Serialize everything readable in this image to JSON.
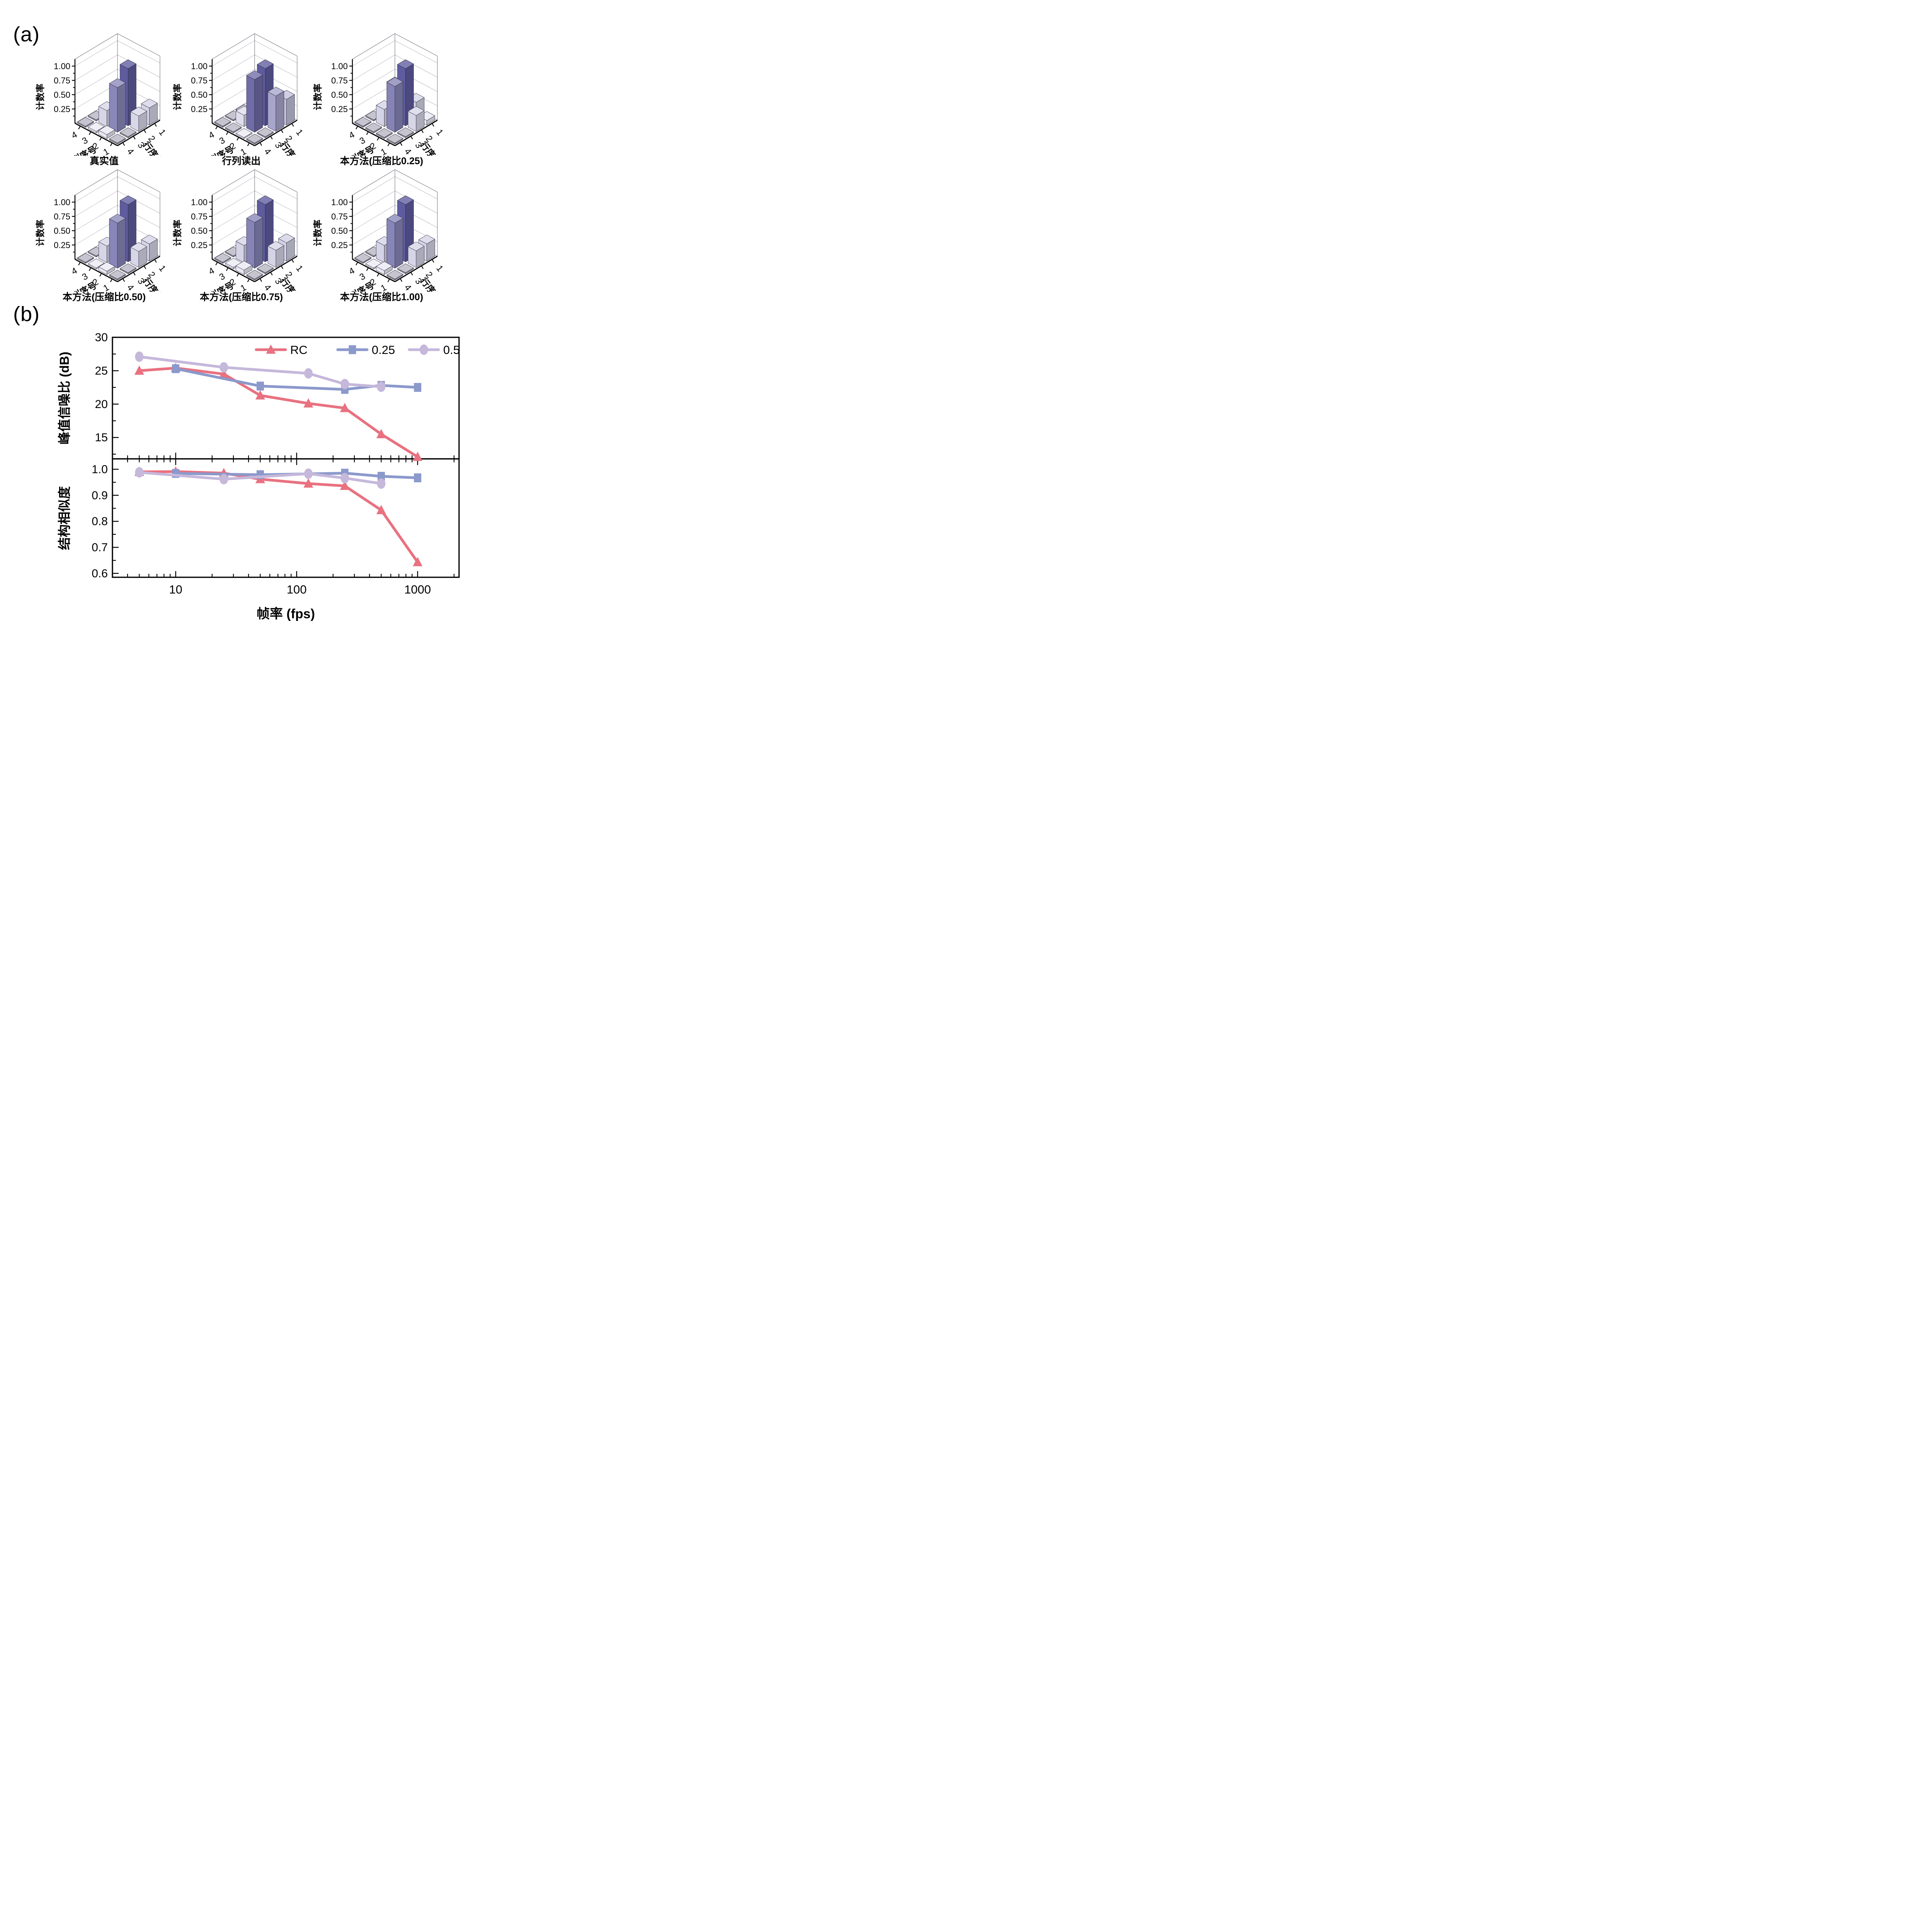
{
  "figure": {
    "panel_a_label": "(a)",
    "panel_b_label": "(b)"
  },
  "chart_data": {
    "panel_a": {
      "type": "bar3d",
      "z_axis": {
        "label": "计数率",
        "lim": [
          0,
          1
        ],
        "major_ticks": [
          0.25,
          0.5,
          0.75,
          1.0
        ],
        "tick_labels": [
          "0.25",
          "0.50",
          "0.75",
          "1.00"
        ],
        "minor_ticks": [
          0.125,
          0.375,
          0.625,
          0.875
        ]
      },
      "col_axis": {
        "label": "列序号",
        "ticks": [
          1,
          2,
          3,
          4
        ],
        "tick_labels": [
          "1",
          "2",
          "3",
          "4"
        ]
      },
      "row_axis": {
        "label": "行序号",
        "ticks": [
          1,
          2,
          3,
          4
        ],
        "tick_labels": [
          "1",
          "2",
          "3",
          "4"
        ]
      },
      "subplots": [
        {
          "title": "真实值",
          "values_rows_1to4_cols_1to4": [
            [
              0.3,
              0.01,
              0.01,
              0.01
            ],
            [
              0.27,
              1.0,
              0.55,
              0.01
            ],
            [
              0.01,
              0.78,
              0.28,
              0.01
            ],
            [
              0.01,
              0.07,
              0.03,
              0.01
            ]
          ]
        },
        {
          "title": "行列读出",
          "values_rows_1to4_cols_1to4": [
            [
              0.45,
              0.01,
              0.01,
              0.01
            ],
            [
              0.62,
              1.0,
              0.01,
              0.01
            ],
            [
              0.01,
              0.92,
              0.2,
              0.01
            ],
            [
              0.01,
              0.02,
              0.01,
              0.01
            ]
          ]
        },
        {
          "title": "本方法(压缩比0.25)",
          "values_rows_1to4_cols_1to4": [
            [
              0.08,
              0.3,
              0.01,
              0.01
            ],
            [
              0.28,
              1.0,
              0.6,
              0.01
            ],
            [
              0.01,
              0.8,
              0.3,
              0.01
            ],
            [
              0.01,
              0.01,
              0.01,
              0.01
            ]
          ]
        },
        {
          "title": "本方法(压缩比0.50)",
          "values_rows_1to4_cols_1to4": [
            [
              0.3,
              0.01,
              0.01,
              0.01
            ],
            [
              0.28,
              1.0,
              0.55,
              0.01
            ],
            [
              0.01,
              0.79,
              0.29,
              0.01
            ],
            [
              0.01,
              0.06,
              0.02,
              0.01
            ]
          ]
        },
        {
          "title": "本方法(压缩比0.75)",
          "values_rows_1to4_cols_1to4": [
            [
              0.32,
              0.01,
              0.01,
              0.01
            ],
            [
              0.3,
              1.0,
              0.55,
              0.01
            ],
            [
              0.01,
              0.8,
              0.3,
              0.01
            ],
            [
              0.01,
              0.08,
              0.03,
              0.01
            ]
          ]
        },
        {
          "title": "本方法(压缩比1.00)",
          "values_rows_1to4_cols_1to4": [
            [
              0.3,
              0.01,
              0.01,
              0.01
            ],
            [
              0.29,
              1.0,
              0.56,
              0.01
            ],
            [
              0.01,
              0.79,
              0.3,
              0.01
            ],
            [
              0.01,
              0.07,
              0.02,
              0.01
            ]
          ]
        }
      ],
      "bar_color_low": "#ECEBF4",
      "bar_color_high": "#5E5B9E",
      "tile_color": "#C6C5CF"
    },
    "panel_b": {
      "type": "line",
      "x_axis": {
        "label": "帧率 (fps)",
        "scale": "log",
        "lim": [
          3,
          2200
        ],
        "major_ticks": [
          10,
          100,
          1000
        ],
        "tick_labels": [
          "10",
          "100",
          "1000"
        ]
      },
      "legend": {
        "position": "top-right-inside",
        "items": [
          {
            "name": "RC",
            "color": "#E97180",
            "marker": "triangle"
          },
          {
            "name": "0.25",
            "color": "#8B99CB",
            "marker": "square"
          },
          {
            "name": "0.5",
            "color": "#C5B8DB",
            "marker": "circle"
          }
        ]
      },
      "top": {
        "y_label": "峰值信噪比 (dB)",
        "ylim": [
          11.8,
          30
        ],
        "y_major_ticks": [
          15,
          20,
          25,
          30
        ],
        "y_tick_labels": [
          "15",
          "20",
          "25",
          "30"
        ],
        "y_minor_ticks": [
          12.5,
          17.5,
          22.5,
          27.5
        ],
        "series": [
          {
            "name": "RC",
            "x": [
              5,
              10,
              25,
              50,
              125,
              250,
              500,
              1000
            ],
            "y": [
              25.0,
              25.4,
              24.5,
              21.3,
              20.1,
              19.4,
              15.5,
              12.1
            ]
          },
          {
            "name": "0.25",
            "x": [
              10,
              50,
              250,
              500,
              1000
            ],
            "y": [
              25.3,
              22.7,
              22.2,
              22.8,
              22.5
            ]
          },
          {
            "name": "0.5",
            "x": [
              5,
              25,
              125,
              250,
              500
            ],
            "y": [
              27.1,
              25.5,
              24.6,
              23.0,
              22.6
            ]
          }
        ]
      },
      "bottom": {
        "y_label": "结构相似度",
        "ylim": [
          0.585,
          1.04
        ],
        "y_major_ticks": [
          0.6,
          0.7,
          0.8,
          0.9,
          1.0
        ],
        "y_tick_labels": [
          "0.6",
          "0.7",
          "0.8",
          "0.9",
          "1.0"
        ],
        "y_minor_ticks": [
          0.65,
          0.75,
          0.85,
          0.95
        ],
        "series": [
          {
            "name": "RC",
            "x": [
              5,
              10,
              25,
              50,
              125,
              250,
              500,
              1000
            ],
            "y": [
              0.99,
              0.991,
              0.985,
              0.962,
              0.945,
              0.936,
              0.843,
              0.643
            ]
          },
          {
            "name": "0.25",
            "x": [
              10,
              50,
              250,
              500,
              1000
            ],
            "y": [
              0.984,
              0.979,
              0.985,
              0.973,
              0.967
            ]
          },
          {
            "name": "0.5",
            "x": [
              5,
              25,
              125,
              250,
              500
            ],
            "y": [
              0.988,
              0.962,
              0.983,
              0.966,
              0.945
            ]
          }
        ]
      }
    }
  }
}
